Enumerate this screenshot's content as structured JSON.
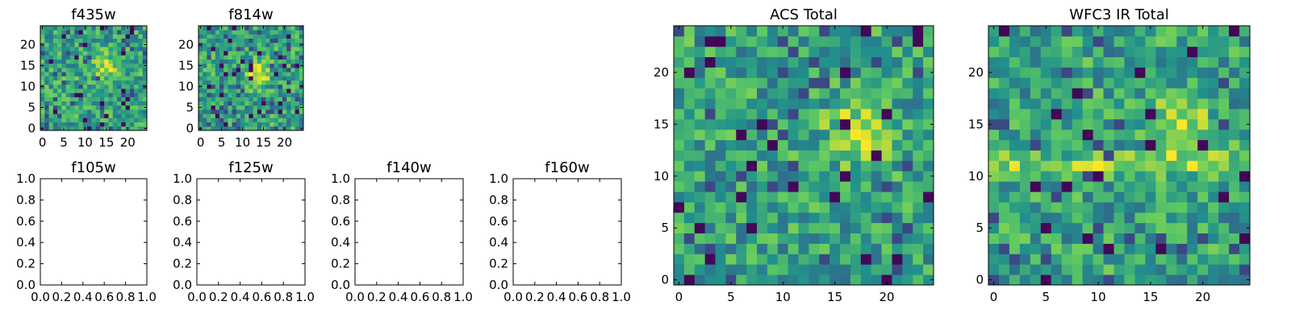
{
  "chart_data": [
    {
      "type": "heatmap",
      "title": "f435w",
      "xlim": [
        -0.5,
        24.5
      ],
      "ylim": [
        -0.5,
        24.5
      ],
      "xticks": [
        0,
        5,
        10,
        15,
        20
      ],
      "yticks": [
        0,
        5,
        10,
        15,
        20
      ],
      "colormap": "viridis",
      "bright_center": [
        15,
        15
      ],
      "values": "25x25 pixel noise image (seed 11)"
    },
    {
      "type": "heatmap",
      "title": "f814w",
      "xlim": [
        -0.5,
        24.5
      ],
      "ylim": [
        -0.5,
        24.5
      ],
      "xticks": [
        0,
        5,
        10,
        15,
        20
      ],
      "yticks": [
        0,
        5,
        10,
        15,
        20
      ],
      "colormap": "viridis",
      "bright_center": [
        14,
        13
      ],
      "values": "25x25 pixel noise image (seed 23)"
    },
    {
      "type": "heatmap",
      "title": "f105w",
      "empty": true,
      "xlim": [
        0,
        1
      ],
      "ylim": [
        0,
        1
      ],
      "xticks": [
        "0.0",
        "0.2",
        "0.4",
        "0.6",
        "0.8",
        "1.0"
      ],
      "yticks": [
        "0.0",
        "0.2",
        "0.4",
        "0.6",
        "0.8",
        "1.0"
      ]
    },
    {
      "type": "heatmap",
      "title": "f125w",
      "empty": true,
      "xlim": [
        0,
        1
      ],
      "ylim": [
        0,
        1
      ],
      "xticks": [
        "0.0",
        "0.2",
        "0.4",
        "0.6",
        "0.8",
        "1.0"
      ],
      "yticks": [
        "0.0",
        "0.2",
        "0.4",
        "0.6",
        "0.8",
        "1.0"
      ]
    },
    {
      "type": "heatmap",
      "title": "f140w",
      "empty": true,
      "xlim": [
        0,
        1
      ],
      "ylim": [
        0,
        1
      ],
      "xticks": [
        "0.0",
        "0.2",
        "0.4",
        "0.6",
        "0.8",
        "1.0"
      ],
      "yticks": [
        "0.0",
        "0.2",
        "0.4",
        "0.6",
        "0.8",
        "1.0"
      ]
    },
    {
      "type": "heatmap",
      "title": "f160w",
      "empty": true,
      "xlim": [
        0,
        1
      ],
      "ylim": [
        0,
        1
      ],
      "xticks": [
        "0.0",
        "0.2",
        "0.4",
        "0.6",
        "0.8",
        "1.0"
      ],
      "yticks": [
        "0.0",
        "0.2",
        "0.4",
        "0.6",
        "0.8",
        "1.0"
      ]
    },
    {
      "type": "heatmap",
      "title": "ACS Total",
      "xlim": [
        -0.5,
        24.5
      ],
      "ylim": [
        -0.5,
        24.5
      ],
      "xticks": [
        0,
        5,
        10,
        15,
        20
      ],
      "yticks": [
        0,
        5,
        10,
        15,
        20
      ],
      "colormap": "viridis",
      "bright_center": [
        17,
        14
      ],
      "values": "25x25 pixel noise image (seed 37)"
    },
    {
      "type": "heatmap",
      "title": "WFC3 IR Total",
      "xlim": [
        -0.5,
        24.5
      ],
      "ylim": [
        -0.5,
        24.5
      ],
      "xticks": [
        0,
        5,
        10,
        15,
        20
      ],
      "yticks": [
        0,
        5,
        10,
        15,
        20
      ],
      "colormap": "viridis",
      "bright_center": [
        18,
        15
      ],
      "bright_band_row": 11,
      "values": "25x25 pixel noise image (seed 53)"
    }
  ]
}
